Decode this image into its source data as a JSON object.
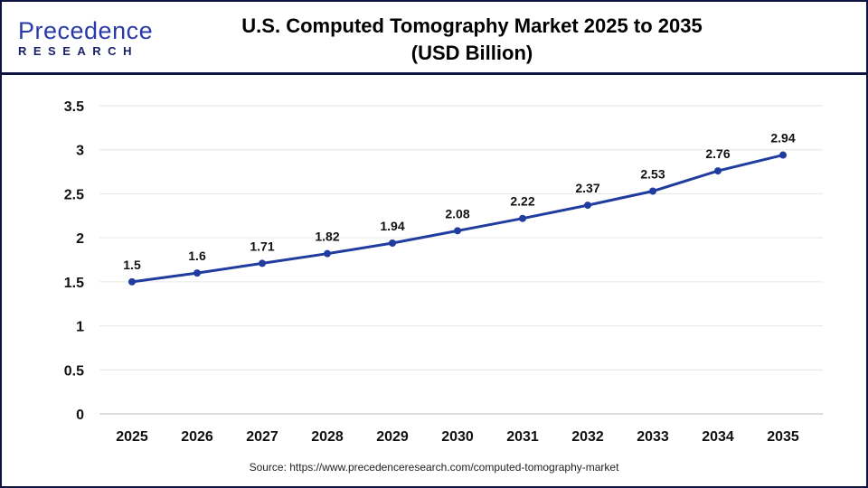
{
  "header": {
    "logo_text": "Precedence",
    "logo_sub": "RESEARCH",
    "title_line1": "U.S. Computed Tomography Market 2025 to 2035",
    "title_line2": "(USD Billion)"
  },
  "source": "Source: https://www.precedenceresearch.com/computed-tomography-market",
  "colors": {
    "line": "#1f3c9e",
    "frame": "#0d1440",
    "grid": "#e6e6e6"
  },
  "chart_data": {
    "type": "line",
    "title": "U.S. Computed Tomography Market 2025 to 2035 (USD Billion)",
    "categories": [
      "2025",
      "2026",
      "2027",
      "2028",
      "2029",
      "2030",
      "2031",
      "2032",
      "2033",
      "2034",
      "2035"
    ],
    "values": [
      1.5,
      1.6,
      1.71,
      1.82,
      1.94,
      2.08,
      2.22,
      2.37,
      2.53,
      2.76,
      2.94
    ],
    "data_labels": [
      "1.5",
      "1.6",
      "1.71",
      "1.82",
      "1.94",
      "2.08",
      "2.22",
      "2.37",
      "2.53",
      "2.76",
      "2.94"
    ],
    "yticks": [
      "0",
      "0.5",
      "1",
      "1.5",
      "2",
      "2.5",
      "3",
      "3.5"
    ],
    "ylim": [
      0,
      3.5
    ],
    "grid": true,
    "legend": "none"
  }
}
